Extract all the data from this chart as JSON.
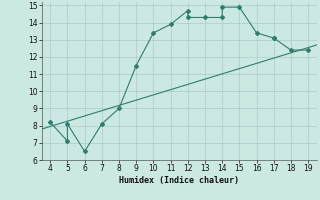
{
  "xlabel": "Humidex (Indice chaleur)",
  "main_x": [
    4,
    5,
    5,
    6,
    7,
    8,
    9,
    10,
    11,
    12,
    12,
    13,
    14,
    14,
    15,
    16,
    17,
    17,
    18,
    19
  ],
  "main_y": [
    8.2,
    7.1,
    8.1,
    6.5,
    8.1,
    9.0,
    11.5,
    13.4,
    13.9,
    14.7,
    14.3,
    14.3,
    14.3,
    14.9,
    14.9,
    13.4,
    13.1,
    13.1,
    12.4,
    12.4
  ],
  "line_x": [
    3.5,
    19.5
  ],
  "line_y": [
    7.8,
    12.7
  ],
  "xlim": [
    3.5,
    19.5
  ],
  "ylim": [
    6,
    15.2
  ],
  "xticks": [
    4,
    5,
    6,
    7,
    8,
    9,
    10,
    11,
    12,
    13,
    14,
    15,
    16,
    17,
    18,
    19
  ],
  "yticks": [
    6,
    7,
    8,
    9,
    10,
    11,
    12,
    13,
    14,
    15
  ],
  "color": "#2e7d6e",
  "bg_color": "#cce8e2",
  "grid_color": "#aaccca"
}
